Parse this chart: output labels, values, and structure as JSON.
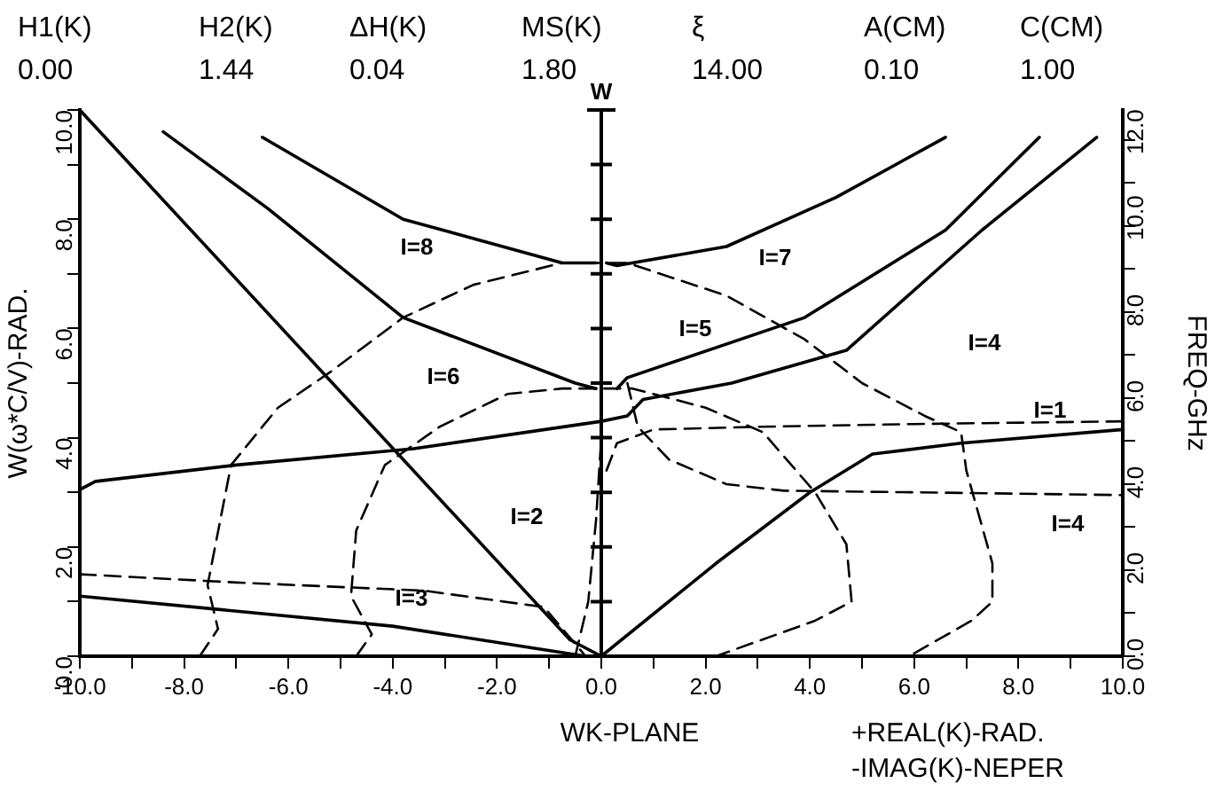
{
  "chart_data": {
    "type": "line",
    "xlabel": "WK-PLANE",
    "ylabel": "W(ω*C/V)-RAD.",
    "y2label": "FREQ-GHz",
    "annotations": [
      "H1(K)",
      "H2(K)",
      "ΔH(K)",
      "MS(K)",
      "ξ",
      "A(CM)",
      "C(CM)",
      "0.00",
      "1.44",
      "0.04",
      "1.80",
      "14.00",
      "0.10",
      "1.00",
      "+REAL(K)-RAD.",
      "-IMAG(K)-NEPER",
      "I=8",
      "I=6",
      "I=2",
      "I=3",
      "I=7",
      "I=5",
      "I=4",
      "I=1",
      "I=4"
    ],
    "series": [
      {
        "color": "#000000",
        "line_style": "solid",
        "x": [
          -10,
          -0.6,
          0
        ],
        "values": [
          10,
          0.3,
          0
        ]
      },
      {
        "color": "#000000",
        "line_style": "solid",
        "x": [
          -8.4,
          -6.4,
          -3.8,
          -0.5,
          -0.1
        ],
        "values": [
          9.6,
          8.2,
          6.2,
          5.0,
          4.9
        ]
      },
      {
        "color": "#000000",
        "line_style": "solid",
        "x": [
          -6.5,
          -3.8,
          -0.75,
          -0.1
        ],
        "values": [
          9.5,
          8.0,
          7.2,
          7.2
        ]
      },
      {
        "color": "#000000",
        "line_style": "solid",
        "x": [
          0.1,
          0.3,
          2.4,
          4.5,
          6.6
        ],
        "values": [
          7.2,
          7.15,
          7.5,
          8.4,
          9.5
        ]
      },
      {
        "color": "#000000",
        "line_style": "solid",
        "x": [
          0.3,
          0.5,
          3.9,
          6.6,
          8.4
        ],
        "values": [
          4.9,
          5.1,
          6.2,
          7.8,
          9.5
        ]
      },
      {
        "color": "#000000",
        "line_style": "solid",
        "x": [
          -10,
          -9.7,
          -7,
          -3.6,
          0,
          0.5,
          0.8,
          2.5,
          4.7,
          7.3,
          9.5
        ],
        "values": [
          3.05,
          3.2,
          3.5,
          3.8,
          4.3,
          4.4,
          4.7,
          5.0,
          5.6,
          7.8,
          9.5
        ]
      },
      {
        "color": "#000000",
        "line_style": "solid",
        "x": [
          0,
          2.2,
          4.0,
          5.2,
          6.9,
          10
        ],
        "values": [
          0,
          1.7,
          3.0,
          3.7,
          3.9,
          4.15
        ]
      },
      {
        "color": "#000000",
        "line_style": "solid",
        "x": [
          -10,
          -4,
          -0.3
        ],
        "values": [
          1.1,
          0.55,
          0
        ]
      },
      {
        "color": "#000000",
        "line_style": "dashed",
        "x": [
          -7.7,
          -7.35,
          -7.55,
          -7.1,
          -6.2,
          -5.2,
          -3.8,
          -2.45,
          -0.75,
          0.5,
          2.4,
          3.9,
          5.0,
          6.2,
          6.9,
          7.0,
          7.5,
          7.5,
          7.1,
          5.9
        ],
        "values": [
          0,
          0.5,
          1.3,
          3.5,
          4.55,
          5.2,
          6.2,
          6.8,
          7.2,
          7.2,
          6.6,
          5.8,
          5.0,
          4.4,
          4.1,
          3.4,
          1.7,
          1.0,
          0.65,
          0
        ]
      },
      {
        "color": "#000000",
        "line_style": "dashed",
        "x": [
          -4.7,
          -4.4,
          -4.8,
          -4.7,
          -4.15,
          -3.1,
          -1.8,
          -0.75,
          0.6,
          2.0,
          3.1,
          4.1,
          4.7,
          4.8,
          4.1,
          2.2
        ],
        "values": [
          0,
          0.4,
          1.1,
          2.3,
          3.5,
          4.2,
          4.8,
          4.9,
          4.9,
          4.55,
          4.1,
          3.0,
          2.05,
          1.0,
          0.65,
          0
        ]
      },
      {
        "color": "#000000",
        "line_style": "dashed",
        "x": [
          0.1,
          0.3,
          1,
          3,
          6,
          10
        ],
        "values": [
          3.4,
          3.9,
          4.15,
          4.2,
          4.25,
          4.3
        ]
      },
      {
        "color": "#000000",
        "line_style": "dashed",
        "x": [
          0.5,
          0.7,
          1.3,
          2.4,
          3.5,
          6,
          10
        ],
        "values": [
          5.0,
          4.2,
          3.6,
          3.15,
          3.03,
          3.0,
          2.95
        ]
      },
      {
        "color": "#000000",
        "line_style": "dashed",
        "x": [
          -10,
          -7,
          -3.4,
          -1.1,
          -0.3
        ],
        "values": [
          1.5,
          1.35,
          1.2,
          0.9,
          0
        ]
      },
      {
        "color": "#000000",
        "line_style": "dashed",
        "x": [
          -0.5,
          -0.25,
          -0.1,
          0
        ],
        "values": [
          0,
          1,
          2.5,
          4
        ]
      }
    ],
    "xlim": [
      -10,
      10
    ],
    "xticks": [
      {
        "value": -10,
        "label": "-10.0"
      },
      {
        "value": -9,
        "label": null
      },
      {
        "value": -8,
        "label": "-8.0"
      },
      {
        "value": -7,
        "label": null
      },
      {
        "value": -6,
        "label": "-6.0"
      },
      {
        "value": -5,
        "label": null
      },
      {
        "value": -4,
        "label": "-4.0"
      },
      {
        "value": -3,
        "label": null
      },
      {
        "value": -2,
        "label": "-2.0"
      },
      {
        "value": -1,
        "label": null
      },
      {
        "value": 0,
        "label": "0.0"
      },
      {
        "value": 1,
        "label": null
      },
      {
        "value": 2,
        "label": "2.0"
      },
      {
        "value": 3,
        "label": null
      },
      {
        "value": 4,
        "label": "4.0"
      },
      {
        "value": 5,
        "label": null
      },
      {
        "value": 6,
        "label": "6.0"
      },
      {
        "value": 7,
        "label": null
      },
      {
        "value": 8,
        "label": "8.0"
      },
      {
        "value": 9,
        "label": null
      },
      {
        "value": 10,
        "label": "10.0"
      }
    ],
    "ylim": [
      0,
      10
    ],
    "yticks": [
      {
        "value": 0,
        "label": "0.0"
      },
      {
        "value": 1,
        "label": null
      },
      {
        "value": 2,
        "label": "2.0"
      },
      {
        "value": 3,
        "label": null
      },
      {
        "value": 4,
        "label": "4.0"
      },
      {
        "value": 5,
        "label": null
      },
      {
        "value": 6,
        "label": "6.0"
      },
      {
        "value": 7,
        "label": null
      },
      {
        "value": 8,
        "label": "8.0"
      },
      {
        "value": 9,
        "label": null
      },
      {
        "value": 10,
        "label": "10.0"
      }
    ],
    "y2lim": [
      0,
      12.7
    ],
    "y2ticks": [
      {
        "value": 0,
        "label": "0.0"
      },
      {
        "value": 1,
        "label": null
      },
      {
        "value": 2,
        "label": "2.0"
      },
      {
        "value": 3,
        "label": null
      },
      {
        "value": 4,
        "label": "4.0"
      },
      {
        "value": 5,
        "label": null
      },
      {
        "value": 6,
        "label": "6.0"
      },
      {
        "value": 7,
        "label": null
      },
      {
        "value": 8,
        "label": "8.0"
      },
      {
        "value": 9,
        "label": null
      },
      {
        "value": 10,
        "label": "10.0"
      },
      {
        "value": 11,
        "label": null
      },
      {
        "value": 12,
        "label": "12.0"
      }
    ],
    "ref_lines": [
      {
        "axis": "x",
        "value": 0,
        "label": "W"
      }
    ],
    "grid": false,
    "legend": false,
    "marker": "none"
  }
}
